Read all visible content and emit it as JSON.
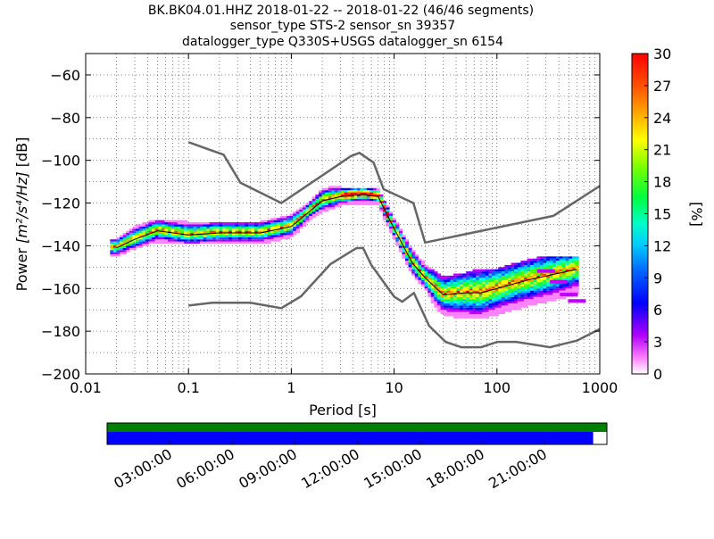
{
  "header": {
    "title_line1": "BK.BK04.01.HHZ   2018-01-22 -- 2018-01-22  (46/46 segments)",
    "title_line2": "sensor_type STS-2 sensor_sn 39357",
    "title_line3": "datalogger_type Q330S+USGS datalogger_sn 6154"
  },
  "chart_data": {
    "type": "heatmap",
    "xlabel": "Period [s]",
    "ylabel_prefix": "Power ",
    "ylabel_units": "[m²/s⁴/Hz]",
    "ylabel_suffix": " [dB]",
    "xscale": "log",
    "xlim": [
      0.01,
      1000
    ],
    "ylim": [
      -200,
      -50
    ],
    "x_ticks": [
      0.01,
      0.1,
      1,
      10,
      100,
      1000
    ],
    "x_tick_labels": [
      "0.01",
      "0.1",
      "1",
      "10",
      "100",
      "1000"
    ],
    "y_ticks": [
      -200,
      -180,
      -160,
      -140,
      -120,
      -100,
      -80,
      -60
    ],
    "y_tick_labels": [
      "−200",
      "−180",
      "−160",
      "−140",
      "−120",
      "−100",
      "−80",
      "−60"
    ],
    "grid": "dotted",
    "colorbar": {
      "label": "[%]",
      "range": [
        0,
        30
      ],
      "ticks": [
        0,
        3,
        6,
        9,
        12,
        15,
        18,
        21,
        24,
        27,
        30
      ],
      "tick_labels": [
        "0",
        "3",
        "6",
        "9",
        "12",
        "15",
        "18",
        "21",
        "24",
        "27",
        "30"
      ]
    },
    "nhnm": {
      "name": "NHNM",
      "color": "#666666",
      "x": [
        0.1,
        0.22,
        0.32,
        0.8,
        3.8,
        4.6,
        6.3,
        7.9,
        15.4,
        20,
        354,
        1000
      ],
      "y": [
        -91.5,
        -97.4,
        -110.5,
        -120,
        -98,
        -96.5,
        -101,
        -113.5,
        -120,
        -138.5,
        -126,
        -112
      ]
    },
    "nlnm": {
      "name": "NLNM",
      "color": "#666666",
      "x": [
        0.1,
        0.17,
        0.4,
        0.8,
        1.24,
        2.4,
        4.3,
        5,
        6,
        10,
        12,
        15.6,
        21.9,
        31.6,
        45,
        70,
        101,
        154,
        328,
        600,
        1000
      ],
      "y": [
        -168,
        -166.7,
        -166.7,
        -169.2,
        -163.7,
        -148.6,
        -141.1,
        -141.1,
        -149,
        -163.8,
        -166.2,
        -162.1,
        -177.5,
        -185,
        -187.5,
        -187.5,
        -185,
        -185,
        -187.5,
        -184.4,
        -179
      ]
    },
    "mean_psd": {
      "name": "mean",
      "color": "#000000",
      "x": [
        0.02,
        0.03,
        0.05,
        0.1,
        0.2,
        0.5,
        1,
        1.5,
        2,
        3,
        5,
        7,
        10,
        15,
        20,
        30,
        50,
        70,
        100,
        200,
        600
      ],
      "y": [
        -141,
        -137,
        -133,
        -135,
        -134,
        -134,
        -131,
        -124,
        -119,
        -117,
        -116,
        -117,
        -132,
        -148,
        -155,
        -163,
        -162,
        -162,
        -160,
        -156,
        -151
      ]
    },
    "upper_envelope": {
      "x": [
        0.02,
        0.03,
        0.05,
        0.1,
        0.2,
        0.5,
        1,
        1.5,
        2,
        2.5,
        3,
        5,
        7,
        10,
        15,
        20,
        30,
        50,
        70,
        100,
        200,
        300,
        600
      ],
      "y": [
        -138,
        -132,
        -129,
        -130,
        -130,
        -130,
        -127,
        -121,
        -115,
        -113,
        -114,
        -114,
        -115,
        -128,
        -143,
        -150,
        -156,
        -154,
        -152,
        -152,
        -148,
        -146,
        -146
      ]
    },
    "lower_envelope": {
      "x": [
        0.02,
        0.03,
        0.05,
        0.1,
        0.2,
        0.5,
        1,
        1.5,
        2,
        3,
        5,
        7,
        10,
        15,
        20,
        25,
        30,
        50,
        70,
        100,
        200,
        300,
        600
      ],
      "y": [
        -145,
        -141,
        -138,
        -139,
        -139,
        -139,
        -136,
        -128,
        -124,
        -121,
        -120,
        -121,
        -136,
        -153,
        -160,
        -168,
        -172,
        -174,
        -174,
        -172,
        -168,
        -166,
        -163
      ]
    },
    "outlier_tail": {
      "x": [
        300,
        400,
        500,
        600
      ],
      "y": [
        -152,
        -157,
        -163,
        -166
      ]
    }
  },
  "coverage": {
    "ticks": [
      "03:00:00",
      "06:00:00",
      "09:00:00",
      "12:00:00",
      "15:00:00",
      "18:00:00",
      "21:00:00"
    ],
    "top_bar_color": "#008000",
    "bottom_bar_color": "#0000ff",
    "bottom_bar_fraction": 0.9725
  }
}
